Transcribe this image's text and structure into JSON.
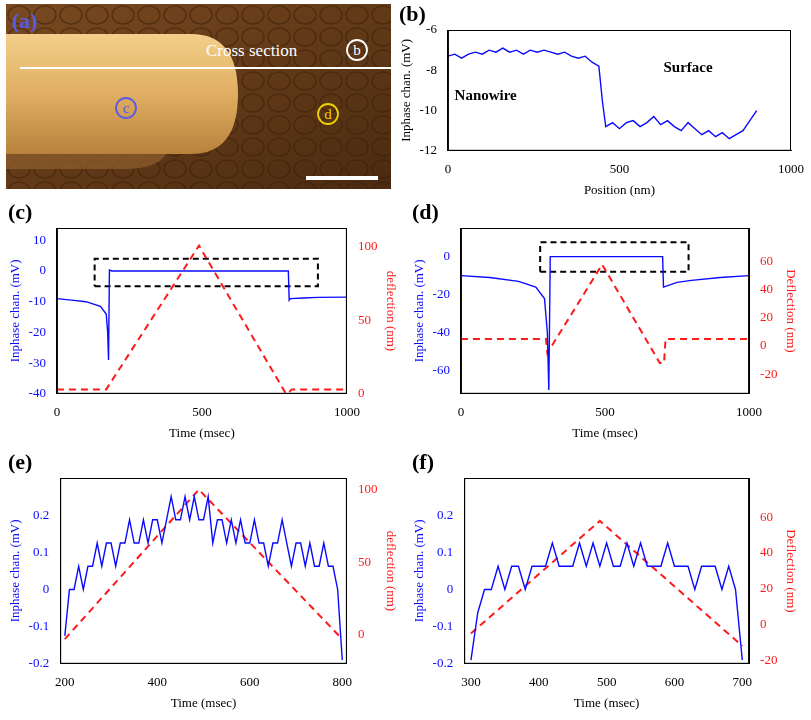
{
  "image_panel": {
    "label": "(a)",
    "color": "#5a5ae6",
    "arrow_text": "Cross section",
    "markers": [
      {
        "text": "b",
        "color": "#ffffff"
      },
      {
        "text": "c",
        "color": "#5a5ae6"
      },
      {
        "text": "d",
        "color": "#f0d000"
      }
    ]
  },
  "chart_data": [
    {
      "type": "line",
      "panel_label": "(b)",
      "x_label": "Position (nm)",
      "y_label": "Inphase chan. (mV)",
      "xlim": [
        0,
        1000
      ],
      "xticks": [
        0,
        500,
        1000
      ],
      "ylim": [
        -12,
        -6
      ],
      "yticks": [
        -12,
        -10,
        -8,
        -6
      ],
      "grid": false,
      "annotations": [
        {
          "text": "Nanowire",
          "x": 110,
          "y": -9.3
        },
        {
          "text": "Surface",
          "x": 700,
          "y": -7.9
        }
      ],
      "series": [
        {
          "color": "#0a0aff",
          "line_style": "solid",
          "axis": "y",
          "x": [
            0,
            20,
            40,
            60,
            80,
            100,
            120,
            140,
            160,
            180,
            200,
            220,
            240,
            260,
            280,
            300,
            320,
            340,
            360,
            380,
            400,
            420,
            440,
            450,
            460,
            480,
            500,
            520,
            540,
            560,
            580,
            600,
            620,
            640,
            660,
            680,
            700,
            720,
            740,
            760,
            780,
            800,
            820,
            840,
            860,
            880,
            900
          ],
          "values": [
            -7.3,
            -7.2,
            -7.4,
            -7.2,
            -7.1,
            -7.2,
            -7.0,
            -7.1,
            -6.9,
            -7.1,
            -7.0,
            -7.2,
            -7.0,
            -7.1,
            -7.0,
            -7.1,
            -7.2,
            -7.1,
            -7.3,
            -7.4,
            -7.3,
            -7.6,
            -7.8,
            -9.5,
            -10.8,
            -10.6,
            -10.9,
            -10.6,
            -10.5,
            -10.8,
            -10.6,
            -10.3,
            -10.7,
            -10.5,
            -10.8,
            -11.0,
            -10.6,
            -10.9,
            -11.2,
            -11.0,
            -11.3,
            -11.1,
            -11.4,
            -11.2,
            -11.0,
            -10.5,
            -10.0
          ]
        }
      ]
    },
    {
      "type": "line",
      "panel_label": "(c)",
      "x_label": "Time (msec)",
      "y_label": "Inphase chan. (mV)",
      "y2_label": "deflection (nm)",
      "xlim": [
        0,
        1000
      ],
      "xticks": [
        0,
        500,
        1000
      ],
      "ylim": [
        -40,
        14
      ],
      "yticks": [
        -40,
        -30,
        -20,
        -10,
        0,
        10
      ],
      "y2lim": [
        0,
        113
      ],
      "y2ticks": [
        0,
        50,
        100
      ],
      "grid": false,
      "zoom_box": {
        "x": [
          130,
          900
        ],
        "y": [
          -5,
          4
        ]
      },
      "series": [
        {
          "color": "#0a0aff",
          "line_style": "solid",
          "axis": "y",
          "x": [
            0,
            50,
            100,
            150,
            170,
            175,
            178,
            181,
            190,
            300,
            400,
            500,
            600,
            700,
            798,
            801,
            805,
            850,
            900,
            1000
          ],
          "values": [
            -9,
            -9.5,
            -10,
            -11.5,
            -14,
            -20,
            -29,
            0.3,
            0,
            0,
            0,
            0,
            0,
            0,
            0,
            -9.5,
            -9,
            -8.8,
            -8.6,
            -8.5
          ]
        },
        {
          "color": "#ff1a1a",
          "line_style": "dashed",
          "axis": "y2",
          "x": [
            0,
            100,
            170,
            490,
            790,
            800,
            810,
            1000
          ],
          "values": [
            3,
            3,
            3,
            101,
            0,
            1,
            3,
            3
          ]
        }
      ]
    },
    {
      "type": "line",
      "panel_label": "(d)",
      "x_label": "Time (msec)",
      "y_label": "Inphase chan. (mV)",
      "y2_label": "Deflection (nm)",
      "xlim": [
        0,
        1000
      ],
      "xticks": [
        0,
        500,
        1000
      ],
      "ylim": [
        -72,
        15
      ],
      "yticks": [
        -60,
        -40,
        -20,
        0
      ],
      "y2lim": [
        -34,
        84
      ],
      "y2ticks": [
        -20,
        0,
        20,
        40,
        60
      ],
      "grid": false,
      "zoom_box": {
        "x": [
          275,
          790
        ],
        "y": [
          -8,
          7.5
        ]
      },
      "series": [
        {
          "color": "#0a0aff",
          "line_style": "solid",
          "axis": "y",
          "x": [
            0,
            100,
            200,
            260,
            290,
            300,
            305,
            310,
            400,
            500,
            600,
            700,
            703,
            750,
            800,
            900,
            1000
          ],
          "values": [
            -10,
            -11,
            -13,
            -16,
            -22,
            -40,
            -70,
            0,
            0,
            0,
            0,
            0,
            -16,
            -13.5,
            -12.5,
            -11,
            -10
          ]
        },
        {
          "color": "#ff1a1a",
          "line_style": "dashed",
          "axis": "y2",
          "x": [
            0,
            295,
            300,
            490,
            690,
            705,
            710,
            1000
          ],
          "values": [
            5,
            5,
            -5,
            58,
            -12,
            -12,
            5,
            5
          ]
        }
      ]
    },
    {
      "type": "line",
      "panel_label": "(e)",
      "x_label": "Time (msec)",
      "y_label": "Inphase chan. (mV)",
      "y2_label": "deflection (nm)",
      "xlim": [
        190,
        810
      ],
      "xticks": [
        200,
        400,
        600,
        800
      ],
      "ylim": [
        -0.2,
        0.3
      ],
      "yticks": [
        -0.2,
        -0.1,
        0,
        0.1,
        0.2
      ],
      "y2lim": [
        -20,
        108
      ],
      "y2ticks": [
        0,
        50,
        100
      ],
      "grid": false,
      "series": [
        {
          "color": "#0a0aff",
          "line_style": "solid",
          "axis": "y",
          "x": [
            200,
            210,
            220,
            230,
            240,
            250,
            260,
            270,
            280,
            290,
            300,
            310,
            320,
            330,
            340,
            350,
            360,
            370,
            380,
            390,
            400,
            410,
            420,
            430,
            440,
            450,
            460,
            470,
            480,
            490,
            500,
            510,
            520,
            530,
            540,
            550,
            560,
            570,
            580,
            590,
            600,
            610,
            620,
            630,
            640,
            650,
            660,
            670,
            680,
            690,
            700,
            710,
            720,
            730,
            740,
            750,
            760,
            770,
            780,
            790,
            800
          ],
          "values": [
            -0.125,
            0,
            0,
            0.0625,
            0,
            0.0625,
            0.0625,
            0.125,
            0.0625,
            0.125,
            0.125,
            0.0625,
            0.125,
            0.125,
            0.1875,
            0.125,
            0.125,
            0.1875,
            0.125,
            0.1875,
            0.1875,
            0.125,
            0.1875,
            0.25,
            0.1875,
            0.1875,
            0.25,
            0.1875,
            0.25,
            0.1875,
            0.1875,
            0.25,
            0.125,
            0.1875,
            0.1875,
            0.125,
            0.1875,
            0.125,
            0.1875,
            0.125,
            0.125,
            0.1875,
            0.125,
            0.125,
            0.0625,
            0.125,
            0.125,
            0.1875,
            0.125,
            0.0625,
            0.125,
            0.125,
            0.0625,
            0.125,
            0.0625,
            0.0625,
            0.125,
            0.0625,
            0.0625,
            0,
            -0.19
          ]
        },
        {
          "color": "#ff1a1a",
          "line_style": "dashed",
          "axis": "y2",
          "x": [
            200,
            490,
            800
          ],
          "values": [
            -3,
            100,
            -3
          ]
        }
      ]
    },
    {
      "type": "line",
      "panel_label": "(f)",
      "x_label": "Time (msec)",
      "y_label": "Inphase chan. (mV)",
      "y2_label": "Deflection (nm)",
      "xlim": [
        290,
        710
      ],
      "xticks": [
        300,
        400,
        500,
        600,
        700
      ],
      "ylim": [
        -0.2,
        0.3
      ],
      "yticks": [
        -0.2,
        -0.1,
        0,
        0.1,
        0.2
      ],
      "y2lim": [
        -22,
        82
      ],
      "y2ticks": [
        -20,
        0,
        20,
        40,
        60
      ],
      "grid": false,
      "series": [
        {
          "color": "#0a0aff",
          "line_style": "solid",
          "axis": "y",
          "x": [
            300,
            310,
            320,
            330,
            340,
            350,
            360,
            370,
            380,
            390,
            400,
            410,
            420,
            430,
            440,
            450,
            460,
            470,
            480,
            490,
            500,
            510,
            520,
            530,
            540,
            550,
            560,
            570,
            580,
            590,
            600,
            610,
            620,
            630,
            640,
            650,
            660,
            670,
            680,
            690,
            700
          ],
          "values": [
            -0.19,
            -0.0625,
            0,
            0,
            0.0625,
            0,
            0.0625,
            0.0625,
            0,
            0.0625,
            0.0625,
            0.0625,
            0.125,
            0.0625,
            0.0625,
            0.0625,
            0.125,
            0.0625,
            0.125,
            0.0625,
            0.125,
            0.0625,
            0.0625,
            0.125,
            0.0625,
            0.125,
            0.0625,
            0.0625,
            0.0625,
            0.125,
            0.0625,
            0.0625,
            0.0625,
            0,
            0.0625,
            0.0625,
            0.0625,
            0,
            0.0625,
            0,
            -0.19
          ]
        },
        {
          "color": "#ff1a1a",
          "line_style": "dashed",
          "axis": "y2",
          "x": [
            300,
            490,
            700
          ],
          "values": [
            -5,
            58,
            -12
          ]
        }
      ]
    }
  ]
}
